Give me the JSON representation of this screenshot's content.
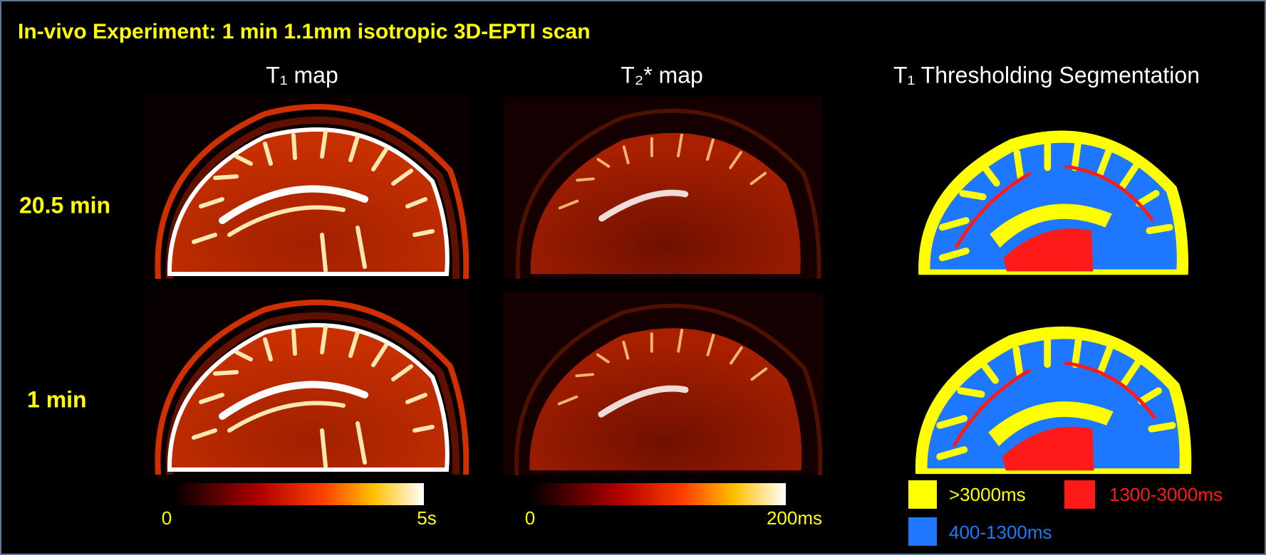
{
  "title": "In-vivo Experiment: 1 min 1.1mm isotropic 3D-EPTI scan",
  "columns": [
    "T₁ map",
    "T₂* map",
    "T₁ Thresholding Segmentation"
  ],
  "rows": [
    "20.5 min",
    "1 min"
  ],
  "colorbars": [
    {
      "min": "0",
      "max": "5s"
    },
    {
      "min": "0",
      "max": "200ms"
    }
  ],
  "legend": [
    {
      "label": ">3000ms",
      "color": "#ffff00"
    },
    {
      "label": "1300-3000ms",
      "color": "#ff1a1a"
    },
    {
      "label": "400-1300ms",
      "color": "#1e78ff"
    }
  ]
}
